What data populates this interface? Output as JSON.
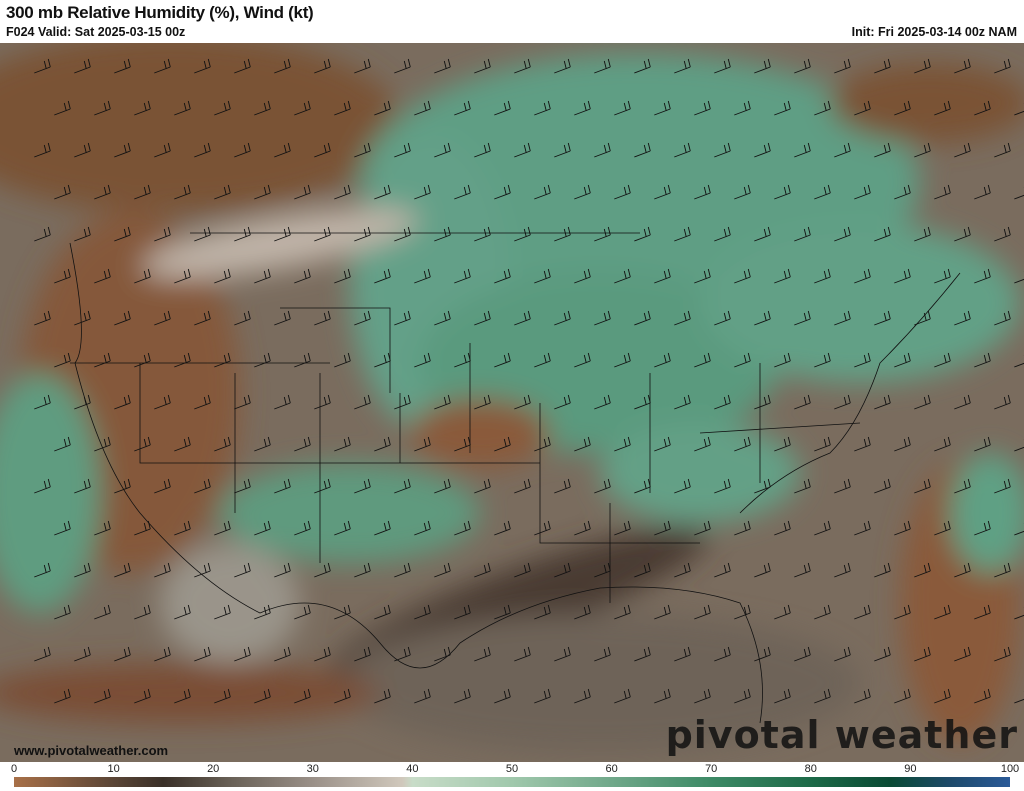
{
  "header": {
    "title": "300 mb Relative Humidity (%), Wind (kt)",
    "valid": "F024 Valid: Sat 2025-03-15 00z",
    "init": "Init: Fri 2025-03-14 00z NAM"
  },
  "map": {
    "colors": {
      "dry": "#8a5a38",
      "neutral": "#b8b0a6",
      "moist": "#5f9e84",
      "very_moist": "#1d6a48"
    }
  },
  "footer": {
    "website": "www.pivotalweather.com",
    "watermark": "pivotal weather"
  },
  "colorbar": {
    "ticks": [
      "0",
      "10",
      "20",
      "30",
      "40",
      "50",
      "60",
      "70",
      "80",
      "90",
      "100"
    ]
  }
}
